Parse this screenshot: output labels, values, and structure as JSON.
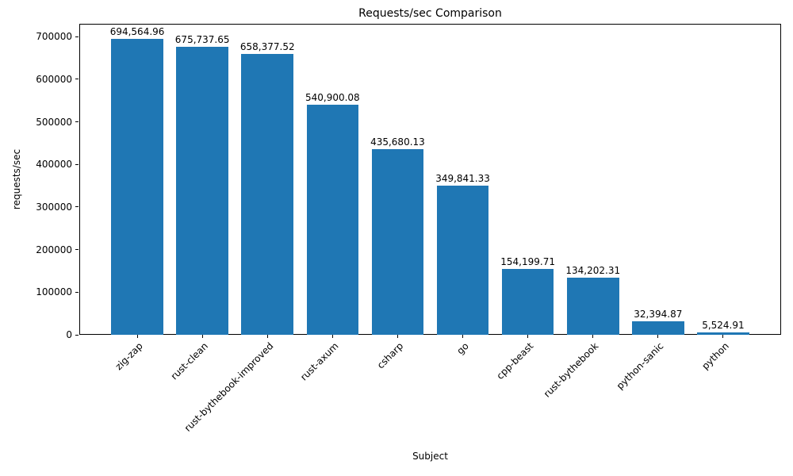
{
  "chart_data": {
    "type": "bar",
    "title": "Requests/sec Comparison",
    "xlabel": "Subject",
    "ylabel": "requests/sec",
    "categories": [
      "zig-zap",
      "rust-clean",
      "rust-bythebook-improved",
      "rust-axum",
      "csharp",
      "go",
      "cpp-beast",
      "rust-bythebook",
      "python-sanic",
      "python"
    ],
    "values": [
      694564.96,
      675737.65,
      658377.52,
      540900.08,
      435680.13,
      349841.33,
      154199.71,
      134202.31,
      32394.87,
      5524.91
    ],
    "value_labels": [
      "694,564.96",
      "675,737.65",
      "658,377.52",
      "540,900.08",
      "435,680.13",
      "349,841.33",
      "154,199.71",
      "134,202.31",
      "32,394.87",
      "5,524.91"
    ],
    "yticks": [
      0,
      100000,
      200000,
      300000,
      400000,
      500000,
      600000,
      700000
    ],
    "ytick_labels": [
      "0",
      "100000",
      "200000",
      "300000",
      "400000",
      "500000",
      "600000",
      "700000"
    ],
    "ylim": [
      0,
      730000
    ],
    "bar_color": "#1f77b4",
    "grid": false,
    "legend": "none"
  }
}
